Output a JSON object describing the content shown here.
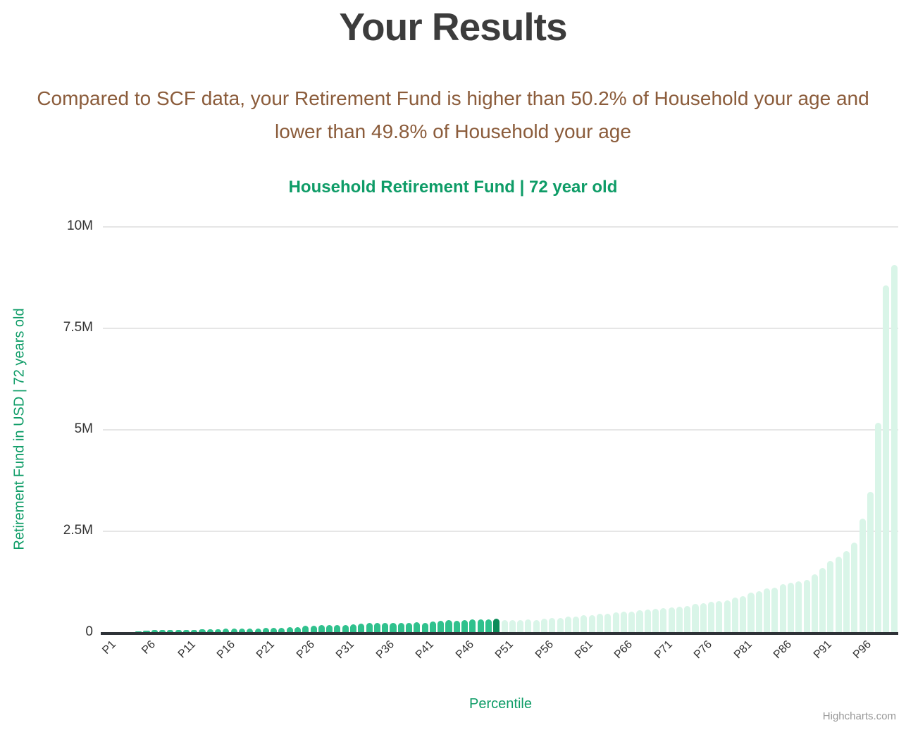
{
  "header": {
    "title": "Your Results",
    "subtitle": "Compared to SCF data, your Retirement Fund is higher than 50.2% of Household your age and lower than 49.8% of Household your age"
  },
  "chart": {
    "title": "Household Retirement Fund | 72 year old",
    "y_axis_title": "Retirement Fund in USD | 72 years old",
    "x_axis_title": "Percentile",
    "credit": "Highcharts.com"
  },
  "chart_data": {
    "type": "bar",
    "title": "Household Retirement Fund | 72 year old",
    "xlabel": "Percentile",
    "ylabel": "Retirement Fund in USD | 72 years old",
    "ylim": [
      0,
      10000000
    ],
    "grid": "horizontal",
    "legend": "none",
    "x_categories": "P1..P100",
    "n_points": 100,
    "x_tick_interval": 5,
    "x_tick_labels": [
      "P1",
      "P6",
      "P11",
      "P16",
      "P21",
      "P26",
      "P31",
      "P36",
      "P41",
      "P46",
      "P51",
      "P56",
      "P61",
      "P66",
      "P71",
      "P76",
      "P81",
      "P86",
      "P91",
      "P96"
    ],
    "y_tick_labels": [
      "0",
      "2.5M",
      "5M",
      "7.5M",
      "10M"
    ],
    "values_usd": [
      0,
      0,
      0,
      5000,
      10000,
      40000,
      45000,
      50000,
      50000,
      55000,
      60000,
      60000,
      65000,
      70000,
      70000,
      80000,
      80000,
      85000,
      90000,
      90000,
      100000,
      100000,
      110000,
      120000,
      130000,
      150000,
      150000,
      170000,
      180000,
      180000,
      180000,
      190000,
      210000,
      220000,
      220000,
      220000,
      220000,
      230000,
      230000,
      240000,
      230000,
      260000,
      270000,
      290000,
      270000,
      300000,
      310000,
      320000,
      320000,
      335000,
      300000,
      300000,
      300000,
      310000,
      300000,
      330000,
      340000,
      350000,
      380000,
      390000,
      410000,
      420000,
      450000,
      460000,
      480000,
      500000,
      510000,
      530000,
      550000,
      570000,
      590000,
      610000,
      620000,
      650000,
      690000,
      720000,
      740000,
      760000,
      780000,
      850000,
      890000,
      980000,
      1010000,
      1070000,
      1100000,
      1180000,
      1210000,
      1250000,
      1290000,
      1420000,
      1580000,
      1750000,
      1850000,
      2000000,
      2200000,
      2800000,
      3450000,
      5150000,
      8550000,
      9050000
    ],
    "highlight": {
      "index": 49,
      "category": "P50",
      "user_percentile": 50.2
    },
    "colors": {
      "bar_below_user": "#30c18d",
      "bar_user_highlight": "#0c8c59",
      "bar_above_user": "#d9f5e8",
      "chart_text_green": "#0e9c67",
      "subtitle_brown": "#8b5c3b",
      "title_gray": "#3c3c3c",
      "axis_label_gray": "#333333",
      "gridline_gray": "#e6e6e6",
      "axis_line_dark": "#2e3237",
      "credit_gray": "#999999"
    }
  }
}
